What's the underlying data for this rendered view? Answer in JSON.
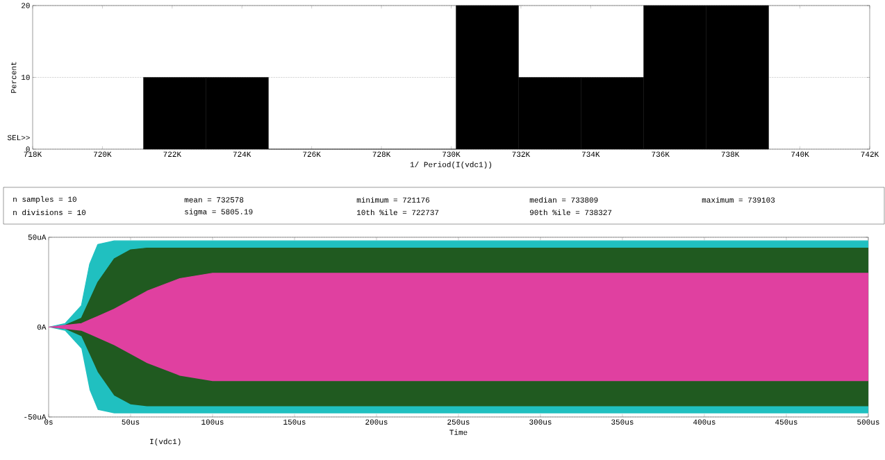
{
  "chart_data": [
    {
      "type": "histogram",
      "xlabel": "1/ Period(I(vdc1))",
      "ylabel": "Percent",
      "bins": [
        721176,
        722969,
        724761,
        726554,
        728347,
        730139,
        731932,
        733725,
        735518,
        737310,
        739103
      ],
      "values": [
        10,
        10,
        0,
        0,
        0,
        20,
        10,
        10,
        20,
        20
      ],
      "color": "#000000",
      "xlim": [
        718000,
        742000
      ],
      "xticks": [
        {
          "value": 718000,
          "label": "718K"
        },
        {
          "value": 720000,
          "label": "720K"
        },
        {
          "value": 722000,
          "label": "722K"
        },
        {
          "value": 724000,
          "label": "724K"
        },
        {
          "value": 726000,
          "label": "726K"
        },
        {
          "value": 728000,
          "label": "728K"
        },
        {
          "value": 730000,
          "label": "730K"
        },
        {
          "value": 732000,
          "label": "732K"
        },
        {
          "value": 734000,
          "label": "734K"
        },
        {
          "value": 736000,
          "label": "736K"
        },
        {
          "value": 738000,
          "label": "738K"
        },
        {
          "value": 740000,
          "label": "740K"
        },
        {
          "value": 742000,
          "label": "742K"
        }
      ],
      "ylim": [
        0,
        20
      ],
      "yticks": [
        0,
        10,
        20
      ],
      "grid": "y",
      "annotations": [
        "SEL>>"
      ]
    },
    {
      "type": "other",
      "annotations": [
        "n samples = 10",
        "mean = 732578",
        "minimum = 721176",
        "median = 733809",
        "maximum = 739103",
        "n divisions = 10",
        "sigma = 5805.19",
        "10th %ile = 722737",
        "90th %ile = 738327"
      ]
    },
    {
      "type": "line",
      "xlabel": "Time",
      "x": [
        0,
        10,
        20,
        25,
        30,
        40,
        50,
        60,
        80,
        100,
        150,
        200,
        300,
        400,
        500
      ],
      "series": [
        {
          "color": "#20c0c0",
          "values": [
            0,
            2,
            12,
            35,
            46,
            48,
            48,
            48,
            48,
            48,
            48,
            48,
            48,
            48,
            48
          ],
          "lower": [
            0,
            -2,
            -12,
            -35,
            -46,
            -48,
            -48,
            -48,
            -48,
            -48,
            -48,
            -48,
            -48,
            -48,
            -48
          ],
          "upper": [
            0,
            2,
            12,
            35,
            46,
            48,
            48,
            48,
            48,
            48,
            48,
            48,
            48,
            48,
            48
          ]
        },
        {
          "color": "#205a20",
          "values": [
            null,
            1,
            5,
            15,
            25,
            38,
            43,
            44,
            44,
            44,
            44,
            44,
            44,
            44,
            44
          ],
          "lower": [
            0,
            -1,
            -5,
            -15,
            -25,
            -38,
            -43,
            -44,
            -44,
            -44,
            -44,
            -44,
            -44,
            -44,
            -44
          ],
          "upper": [
            0,
            1,
            5,
            15,
            25,
            38,
            43,
            44,
            44,
            44,
            44,
            44,
            44,
            44,
            44
          ]
        },
        {
          "color": "#e040a0",
          "values": [
            0,
            1,
            2,
            4,
            6,
            10,
            15,
            20,
            27,
            30,
            30,
            30,
            30,
            30,
            30
          ],
          "lower": [
            0,
            -1,
            -2,
            -4,
            -6,
            -10,
            -15,
            -20,
            -27,
            -30,
            -30,
            -30,
            -30,
            -30,
            -30
          ],
          "upper": [
            0,
            1,
            2,
            4,
            6,
            10,
            15,
            20,
            27,
            30,
            30,
            30,
            30,
            30,
            30
          ]
        }
      ],
      "xlim": [
        0,
        500
      ],
      "xticks": [
        {
          "value": 0,
          "label": "0s"
        },
        {
          "value": 50,
          "label": "50us"
        },
        {
          "value": 100,
          "label": "100us"
        },
        {
          "value": 150,
          "label": "150us"
        },
        {
          "value": 200,
          "label": "200us"
        },
        {
          "value": 250,
          "label": "250us"
        },
        {
          "value": 300,
          "label": "300us"
        },
        {
          "value": 350,
          "label": "350us"
        },
        {
          "value": 400,
          "label": "400us"
        },
        {
          "value": 450,
          "label": "450us"
        },
        {
          "value": 500,
          "label": "500us"
        }
      ],
      "ylim": [
        -50,
        50
      ],
      "yticks": [
        {
          "value": -50,
          "label": "-50uA"
        },
        {
          "value": 0,
          "label": "0A"
        },
        {
          "value": 50,
          "label": "50uA"
        }
      ],
      "grid": "y",
      "annotations": [
        "I(vdc1)"
      ]
    }
  ]
}
